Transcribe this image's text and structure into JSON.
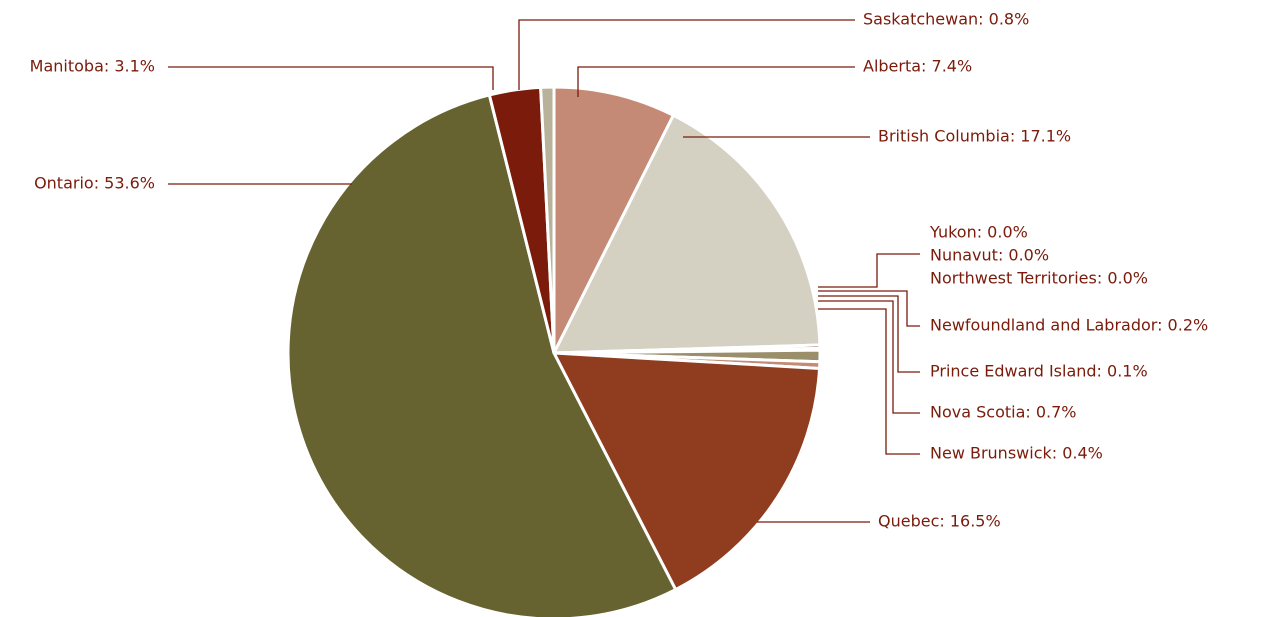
{
  "chart_data": {
    "type": "pie",
    "start_angle_deg": 0,
    "direction": "clockwise",
    "legend": "none",
    "slices": [
      {
        "label": "Alberta: 7.4%",
        "name": "Alberta",
        "value": 7.4,
        "color": "#c48a75"
      },
      {
        "label": "British Columbia: 17.1%",
        "name": "British Columbia",
        "value": 17.1,
        "color": "#d4d0c2"
      },
      {
        "label": "Yukon: 0.0%",
        "name": "Yukon",
        "value": 0.0,
        "color": "#7a1b0b"
      },
      {
        "label": "Nunavut: 0.0%",
        "name": "Nunavut",
        "value": 0.0,
        "color": "#7a1b0b"
      },
      {
        "label": "Northwest Territories: 0.0%",
        "name": "Northwest Territories",
        "value": 0.0,
        "color": "#7a1b0b"
      },
      {
        "label": "Newfoundland and Labrador: 0.2%",
        "name": "Newfoundland and Labrador",
        "value": 0.2,
        "color": "#7a1b0b"
      },
      {
        "label": "Prince Edward Island: 0.1%",
        "name": "Prince Edward Island",
        "value": 0.1,
        "color": "#b8b29a"
      },
      {
        "label": "Nova Scotia: 0.7%",
        "name": "Nova Scotia",
        "value": 0.7,
        "color": "#9a8f6a"
      },
      {
        "label": "New Brunswick: 0.4%",
        "name": "New Brunswick",
        "value": 0.4,
        "color": "#c48a75"
      },
      {
        "label": "Quebec: 16.5%",
        "name": "Quebec",
        "value": 16.5,
        "color": "#8f3c1f"
      },
      {
        "label": "Ontario: 53.6%",
        "name": "Ontario",
        "value": 53.6,
        "color": "#676330"
      },
      {
        "label": "Manitoba: 3.1%",
        "name": "Manitoba",
        "value": 3.1,
        "color": "#7a1b0b"
      },
      {
        "label": "Saskatchewan: 0.8%",
        "name": "Saskatchewan",
        "value": 0.8,
        "color": "#b8b29a"
      }
    ]
  },
  "colors": {
    "label_text": "#7a1b0b",
    "leader_line": "#7a1b0b",
    "slice_separator": "#ffffff"
  }
}
